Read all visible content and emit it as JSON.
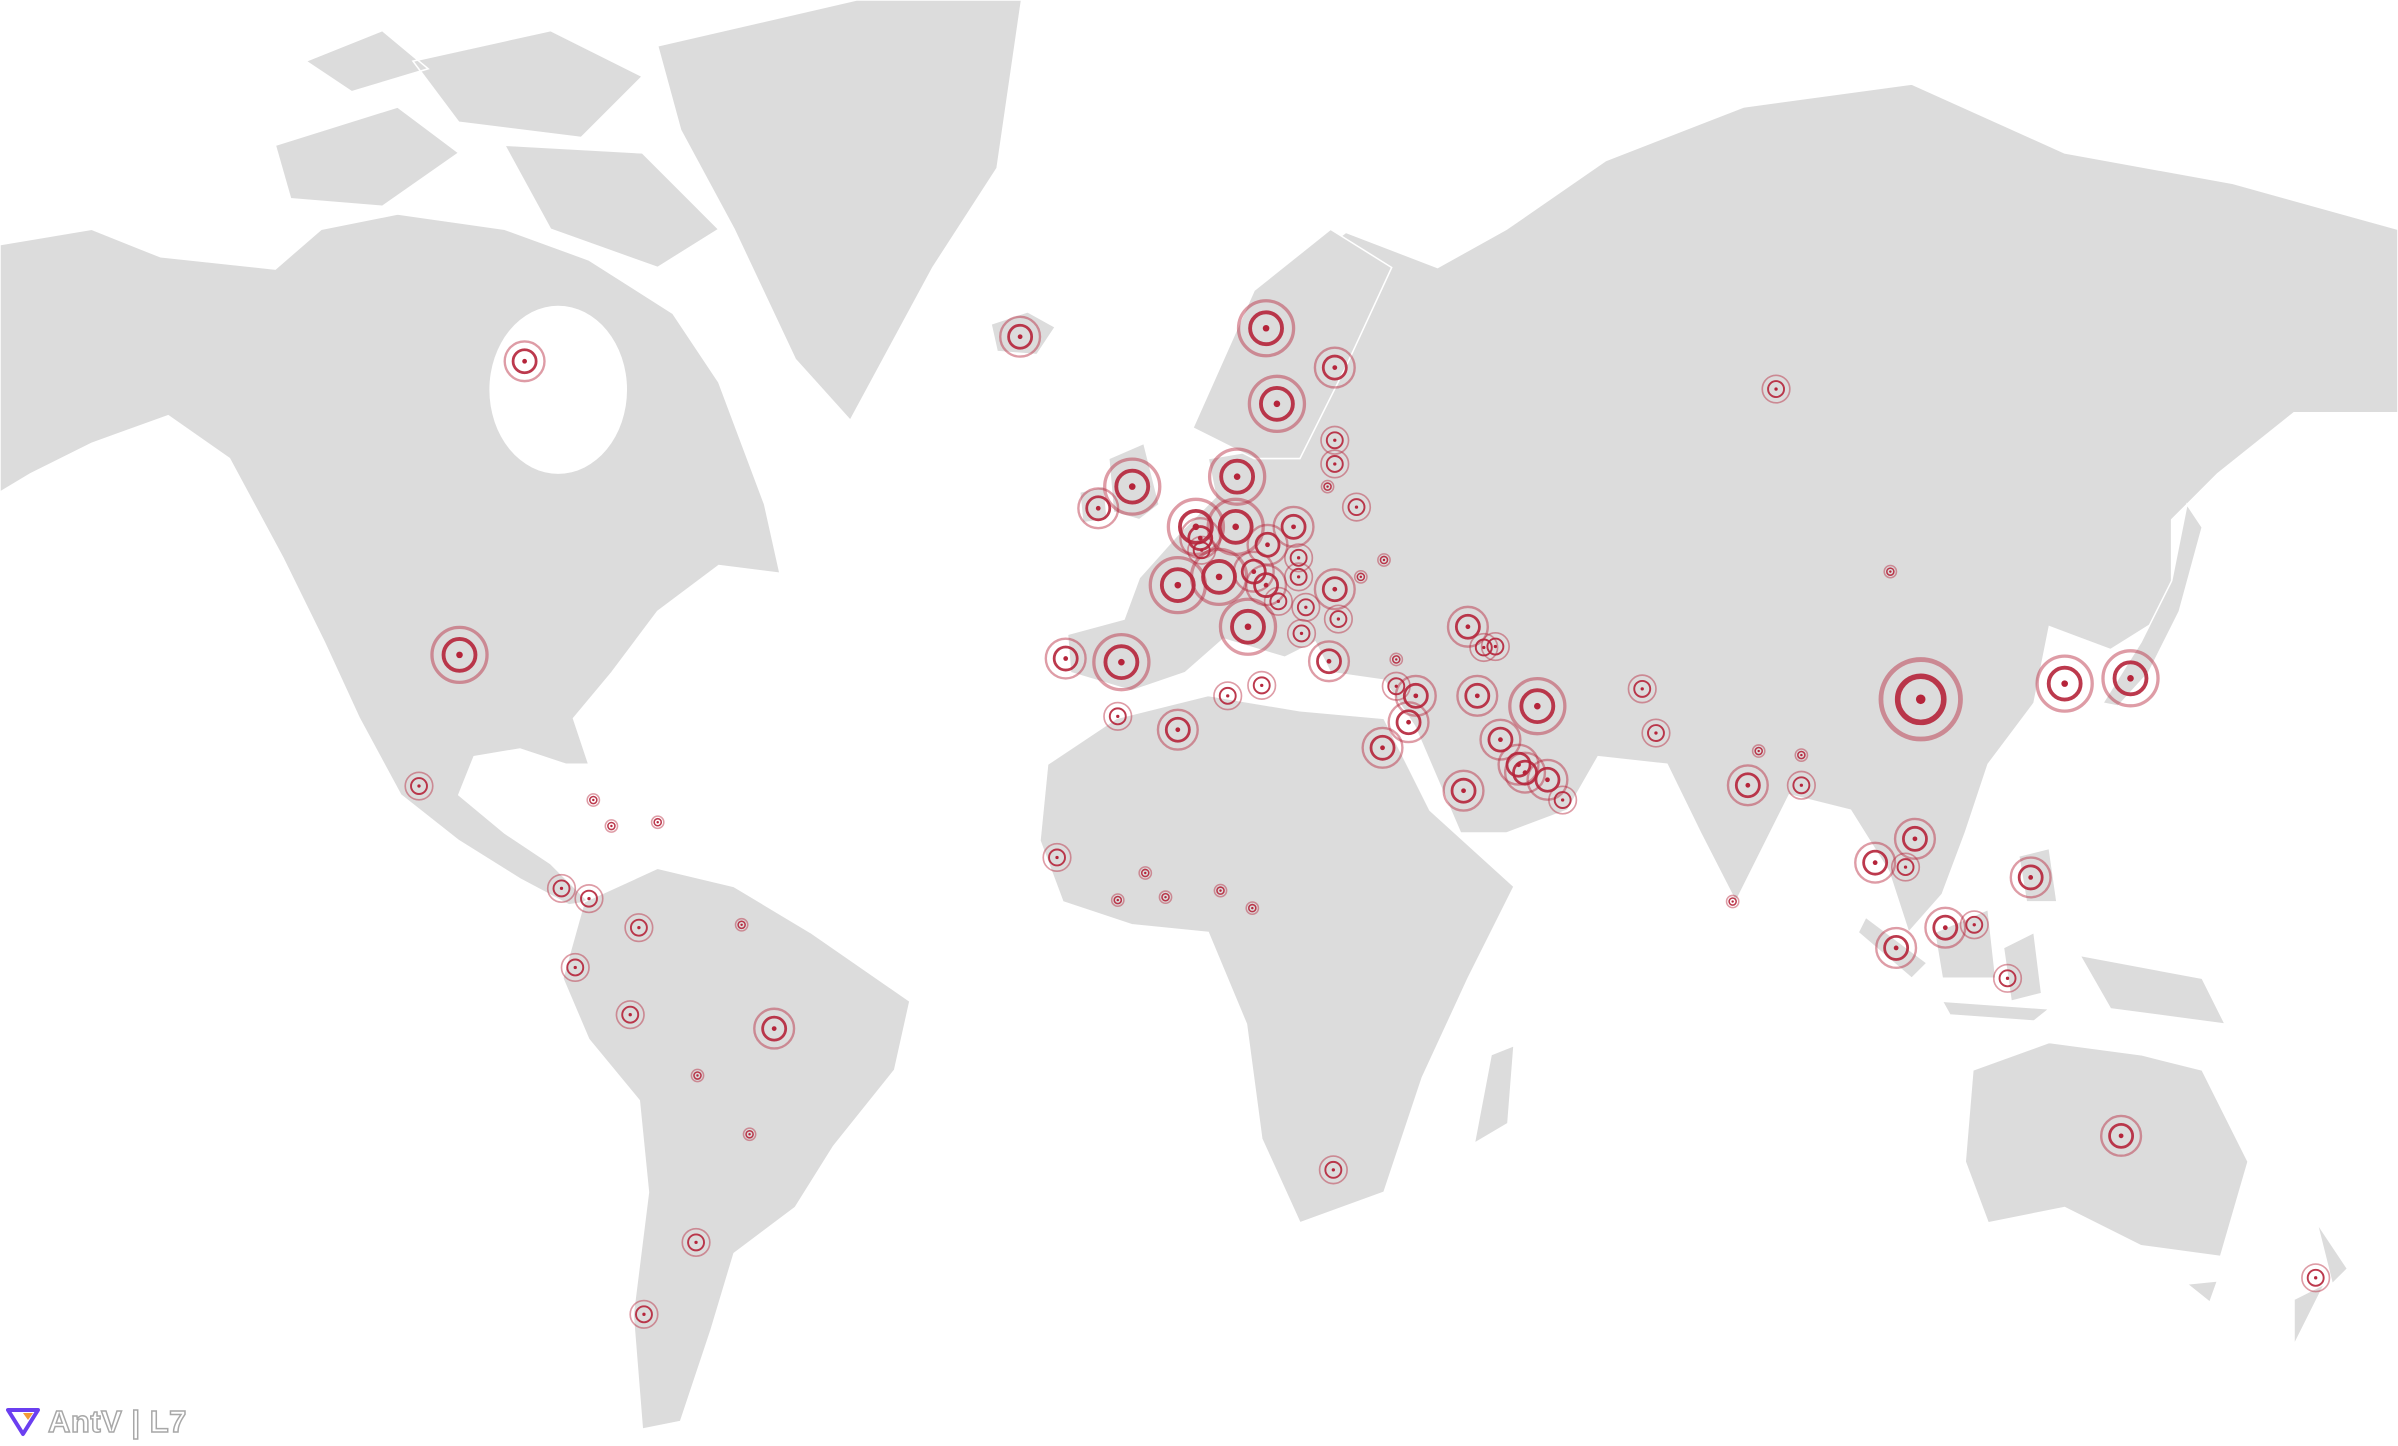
{
  "logo": {
    "text": "AntV | L7"
  },
  "colors": {
    "land": "#dcdcdc",
    "border": "#ffffff",
    "marker": "#b5243a",
    "background": "#ffffff"
  },
  "map": {
    "projection": "mercator",
    "marker_style": "pulsing-rings",
    "points": [
      {
        "lon": -89,
        "lat": 63,
        "size": 2
      },
      {
        "lon": -98,
        "lat": 38,
        "size": 3
      },
      {
        "lon": -103.6,
        "lat": 22.4,
        "size": 1
      },
      {
        "lon": -20.5,
        "lat": 64.5,
        "size": 2
      },
      {
        "lon": 13.5,
        "lat": 65,
        "size": 3
      },
      {
        "lon": 23,
        "lat": 62.6,
        "size": 2
      },
      {
        "lon": 84,
        "lat": 61.2,
        "size": 1
      },
      {
        "lon": 15,
        "lat": 60.2,
        "size": 3
      },
      {
        "lon": -5,
        "lat": 54,
        "size": 3
      },
      {
        "lon": -9.7,
        "lat": 52.2,
        "size": 2
      },
      {
        "lon": 9.5,
        "lat": 54.8,
        "size": 3
      },
      {
        "lon": 3.8,
        "lat": 50.6,
        "size": 3
      },
      {
        "lon": 9.3,
        "lat": 50.6,
        "size": 3
      },
      {
        "lon": 1.3,
        "lat": 45.2,
        "size": 3
      },
      {
        "lon": 7,
        "lat": 46,
        "size": 3
      },
      {
        "lon": 11,
        "lat": 41,
        "size": 3
      },
      {
        "lon": -6.5,
        "lat": 37.2,
        "size": 3
      },
      {
        "lon": -14.2,
        "lat": 37.6,
        "size": 2
      },
      {
        "lon": 23,
        "lat": 57.6,
        "size": 1
      },
      {
        "lon": 23,
        "lat": 55.8,
        "size": 1
      },
      {
        "lon": 22,
        "lat": 54,
        "size": 0
      },
      {
        "lon": 26,
        "lat": 52.3,
        "size": 1
      },
      {
        "lon": 17.3,
        "lat": 50.6,
        "size": 2
      },
      {
        "lon": 13.7,
        "lat": 49,
        "size": 2
      },
      {
        "lon": 18,
        "lat": 47.8,
        "size": 1
      },
      {
        "lon": 11.8,
        "lat": 46.5,
        "size": 2
      },
      {
        "lon": 18,
        "lat": 46,
        "size": 1
      },
      {
        "lon": 13.5,
        "lat": 45.2,
        "size": 2
      },
      {
        "lon": 23,
        "lat": 44.8,
        "size": 2
      },
      {
        "lon": 26.6,
        "lat": 46,
        "size": 0
      },
      {
        "lon": 29.8,
        "lat": 47.6,
        "size": 0
      },
      {
        "lon": 15.2,
        "lat": 43.6,
        "size": 1
      },
      {
        "lon": 19,
        "lat": 43,
        "size": 1
      },
      {
        "lon": 23.5,
        "lat": 41.8,
        "size": 1
      },
      {
        "lon": 18.4,
        "lat": 40.3,
        "size": 1
      },
      {
        "lon": 22.2,
        "lat": 37.3,
        "size": 2
      },
      {
        "lon": 4.4,
        "lat": 49.6,
        "size": 2
      },
      {
        "lon": 4.6,
        "lat": 48.5,
        "size": 1
      },
      {
        "lon": 12.9,
        "lat": 34.6,
        "size": 1
      },
      {
        "lon": 8.2,
        "lat": 33.4,
        "size": 1
      },
      {
        "lon": 1.3,
        "lat": 29.4,
        "size": 2
      },
      {
        "lon": -7,
        "lat": 31,
        "size": 1
      },
      {
        "lon": 41.4,
        "lat": 41,
        "size": 2
      },
      {
        "lon": 43.6,
        "lat": 38.8,
        "size": 1
      },
      {
        "lon": 45.2,
        "lat": 38.9,
        "size": 1
      },
      {
        "lon": 31.5,
        "lat": 37.5,
        "size": 0
      },
      {
        "lon": 31.5,
        "lat": 34.5,
        "size": 1
      },
      {
        "lon": 34.2,
        "lat": 33.4,
        "size": 2
      },
      {
        "lon": 33.2,
        "lat": 30.3,
        "size": 2
      },
      {
        "lon": 29.6,
        "lat": 27.2,
        "size": 2
      },
      {
        "lon": 42.7,
        "lat": 33.4,
        "size": 2
      },
      {
        "lon": 51,
        "lat": 32.2,
        "size": 3
      },
      {
        "lon": 45.9,
        "lat": 28.2,
        "size": 2
      },
      {
        "lon": 48.4,
        "lat": 25.1,
        "size": 2
      },
      {
        "lon": 49.3,
        "lat": 24.1,
        "size": 2
      },
      {
        "lon": 52.4,
        "lat": 23.2,
        "size": 2
      },
      {
        "lon": 54.5,
        "lat": 20.6,
        "size": 1
      },
      {
        "lon": 40.8,
        "lat": 21.8,
        "size": 2
      },
      {
        "lon": 65.5,
        "lat": 34.2,
        "size": 1
      },
      {
        "lon": 67.4,
        "lat": 29,
        "size": 1
      },
      {
        "lon": 80.1,
        "lat": 22.5,
        "size": 2
      },
      {
        "lon": 87.5,
        "lat": 22.5,
        "size": 1
      },
      {
        "lon": 87.5,
        "lat": 26.3,
        "size": 0
      },
      {
        "lon": 81.6,
        "lat": 26.8,
        "size": 0
      },
      {
        "lon": 99.8,
        "lat": 46.5,
        "size": 0
      },
      {
        "lon": 104,
        "lat": 33,
        "size": 4
      },
      {
        "lon": 123.9,
        "lat": 34.8,
        "size": 3
      },
      {
        "lon": 133,
        "lat": 35.4,
        "size": 3
      },
      {
        "lon": 103.2,
        "lat": 15.5,
        "size": 2
      },
      {
        "lon": 97.7,
        "lat": 12.3,
        "size": 2
      },
      {
        "lon": 101.9,
        "lat": 11.7,
        "size": 1
      },
      {
        "lon": 119.2,
        "lat": 10.3,
        "size": 2
      },
      {
        "lon": 100.6,
        "lat": 0.6,
        "size": 2
      },
      {
        "lon": 107.4,
        "lat": 3.4,
        "size": 2
      },
      {
        "lon": 111.4,
        "lat": 3.8,
        "size": 1
      },
      {
        "lon": 116,
        "lat": -3.6,
        "size": 1
      },
      {
        "lon": 78,
        "lat": 7,
        "size": 0
      },
      {
        "lon": 131.7,
        "lat": -24.6,
        "size": 2
      },
      {
        "lon": 158.6,
        "lat": -41,
        "size": 1
      },
      {
        "lon": -15.4,
        "lat": 13,
        "size": 1
      },
      {
        "lon": -3.2,
        "lat": 10.9,
        "size": 0
      },
      {
        "lon": -7,
        "lat": 7.2,
        "size": 0
      },
      {
        "lon": -0.4,
        "lat": 7.6,
        "size": 0
      },
      {
        "lon": 7.2,
        "lat": 8.5,
        "size": 0
      },
      {
        "lon": 11.6,
        "lat": 6.1,
        "size": 0
      },
      {
        "lon": 22.8,
        "lat": -28.8,
        "size": 1
      },
      {
        "lon": -79.5,
        "lat": 20.6,
        "size": 0
      },
      {
        "lon": -77,
        "lat": 17.2,
        "size": 0
      },
      {
        "lon": -70.6,
        "lat": 17.7,
        "size": 0
      },
      {
        "lon": -83.9,
        "lat": 8.8,
        "size": 1
      },
      {
        "lon": -80.1,
        "lat": 7.4,
        "size": 1
      },
      {
        "lon": -73.2,
        "lat": 3.4,
        "size": 1
      },
      {
        "lon": -59,
        "lat": 3.8,
        "size": 0
      },
      {
        "lon": -82,
        "lat": -2.1,
        "size": 1
      },
      {
        "lon": -74.4,
        "lat": -8.6,
        "size": 1
      },
      {
        "lon": -54.5,
        "lat": -10.5,
        "size": 2
      },
      {
        "lon": -65.1,
        "lat": -16.8,
        "size": 0
      },
      {
        "lon": -57.9,
        "lat": -24.4,
        "size": 0
      },
      {
        "lon": -65.3,
        "lat": -37.2,
        "size": 1
      },
      {
        "lon": -72.5,
        "lat": -44.7,
        "size": 1
      }
    ]
  }
}
